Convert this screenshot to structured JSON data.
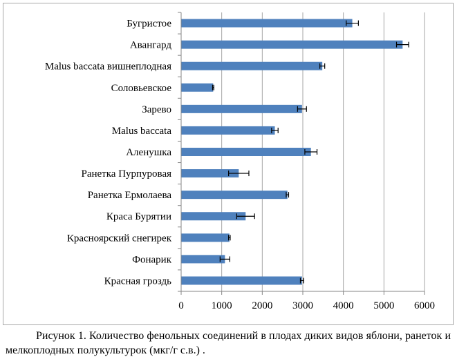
{
  "chart_data": {
    "type": "bar",
    "orientation": "horizontal",
    "categories": [
      "Бугристое",
      "Авангард",
      "Malus baccata вишнеплодная",
      "Соловьевское",
      "Зарево",
      "Malus baccata",
      "Аленушка",
      "Ранетка Пурпуровая",
      "Ранетка Ермолаева",
      "Краса Бурятии",
      "Красноярский снегирек",
      "Фонарик",
      "Красная гроздь"
    ],
    "values": [
      4220,
      5460,
      3480,
      790,
      2980,
      2310,
      3200,
      1420,
      2620,
      1590,
      1190,
      1080,
      2980
    ],
    "errors": [
      150,
      150,
      60,
      15,
      110,
      80,
      150,
      250,
      30,
      220,
      20,
      120,
      40
    ],
    "xlim": [
      0,
      6000
    ],
    "xticks": [
      "0",
      "1000",
      "2000",
      "3000",
      "4000",
      "5000",
      "6000"
    ],
    "grid": true,
    "bar_color": "#4f81bd",
    "title": "",
    "xlabel": "",
    "ylabel": ""
  },
  "caption": {
    "text": "Рисунок 1. Количество фенольных соединений в плодах диких видов яблони, ранеток и мелкоплодных полукультурок (мкг/г с.в.) ."
  }
}
